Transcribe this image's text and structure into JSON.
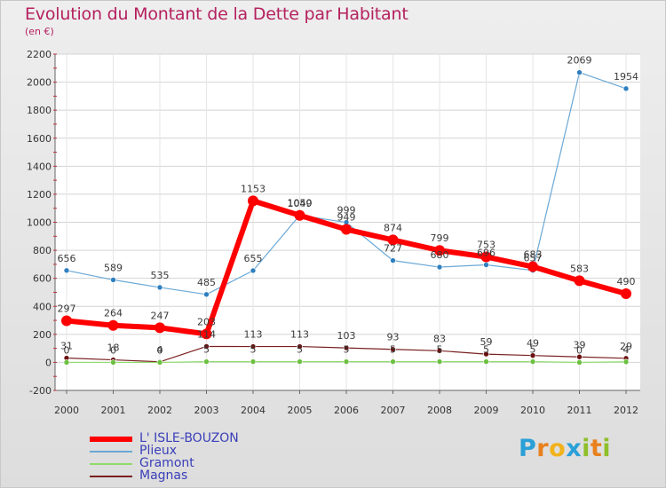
{
  "title": "Evolution du Montant de la Dette par Habitant",
  "subtitle": "(en €)",
  "logo": {
    "text": "Proxiti",
    "letters": [
      {
        "ch": "P",
        "color": "#2aa0d8"
      },
      {
        "ch": "r",
        "color": "#e8801c"
      },
      {
        "ch": "o",
        "color": "#f2b21b"
      },
      {
        "ch": "x",
        "color": "#2aa0d8"
      },
      {
        "ch": "i",
        "color": "#8fbf2a"
      },
      {
        "ch": "t",
        "color": "#e8801c"
      },
      {
        "ch": "i",
        "color": "#8fbf2a"
      }
    ]
  },
  "chart_data": {
    "type": "line",
    "title": "Evolution du Montant de la Dette par Habitant",
    "ylabel": "(en €)",
    "xlabel": "",
    "ylim": [
      -200,
      2200
    ],
    "yticks": [
      -200,
      0,
      200,
      400,
      600,
      800,
      1000,
      1200,
      1400,
      1600,
      1800,
      2000,
      2200
    ],
    "categories": [
      "2000",
      "2001",
      "2002",
      "2003",
      "2004",
      "2005",
      "2006",
      "2007",
      "2008",
      "2009",
      "2010",
      "2011",
      "2012"
    ],
    "legend_position": "bottom-left",
    "series": [
      {
        "name": "L' ISLE-BOUZON",
        "color": "#ff0000",
        "marker": "#ff0000",
        "width": 6,
        "radius": 6,
        "values": [
          297,
          264,
          247,
          203,
          1153,
          1049,
          949,
          874,
          799,
          753,
          683,
          583,
          490
        ]
      },
      {
        "name": "Plieux",
        "color": "#6aa8d6",
        "marker": "#2f7fc0",
        "width": 1.2,
        "radius": 3,
        "values": [
          656,
          589,
          535,
          485,
          655,
          1050,
          999,
          727,
          680,
          696,
          657,
          2069,
          1954
        ]
      },
      {
        "name": "Gramont",
        "color": "#8fdc6a",
        "marker": "#6cc040",
        "width": 1.2,
        "radius": 3,
        "values": [
          0,
          0,
          0,
          5,
          5,
          5,
          5,
          5,
          5,
          5,
          5,
          0,
          4
        ]
      },
      {
        "name": "Magnas",
        "color": "#7a2020",
        "marker": "#6a1010",
        "width": 1.2,
        "radius": 3,
        "values": [
          31,
          18,
          4,
          114,
          113,
          113,
          103,
          93,
          83,
          59,
          49,
          39,
          29
        ]
      }
    ]
  }
}
